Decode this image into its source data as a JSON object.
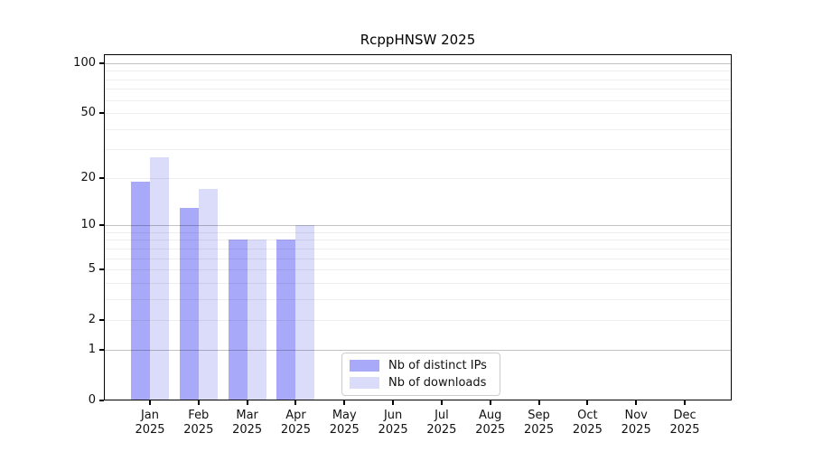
{
  "figure": {
    "background_color": "#ffffff"
  },
  "chart_data": {
    "type": "bar",
    "title": "RcppHNSW 2025",
    "categories": [
      "Jan",
      "Feb",
      "Mar",
      "Apr",
      "May",
      "Jun",
      "Jul",
      "Aug",
      "Sep",
      "Oct",
      "Nov",
      "Dec"
    ],
    "category_year": "2025",
    "series": [
      {
        "name": "Nb of distinct IPs",
        "color": "#a9a9fa",
        "values": [
          19,
          13,
          8,
          8,
          null,
          null,
          null,
          null,
          null,
          null,
          null,
          null
        ]
      },
      {
        "name": "Nb of downloads",
        "color": "#dbdbfa",
        "values": [
          27,
          17,
          8,
          10,
          null,
          null,
          null,
          null,
          null,
          null,
          null,
          null
        ]
      }
    ],
    "yscale": "log1p",
    "ylim": [
      0,
      113
    ],
    "yticks": [
      0,
      1,
      2,
      5,
      10,
      20,
      50,
      100
    ],
    "gridlines_major": [
      1,
      10,
      100
    ],
    "gridlines_minor": [
      2,
      3,
      4,
      5,
      6,
      7,
      8,
      9,
      20,
      30,
      40,
      50,
      60,
      70,
      80,
      90
    ],
    "grid": true,
    "legend_position": "bottom-center-inside",
    "xlabel": "",
    "ylabel": ""
  }
}
